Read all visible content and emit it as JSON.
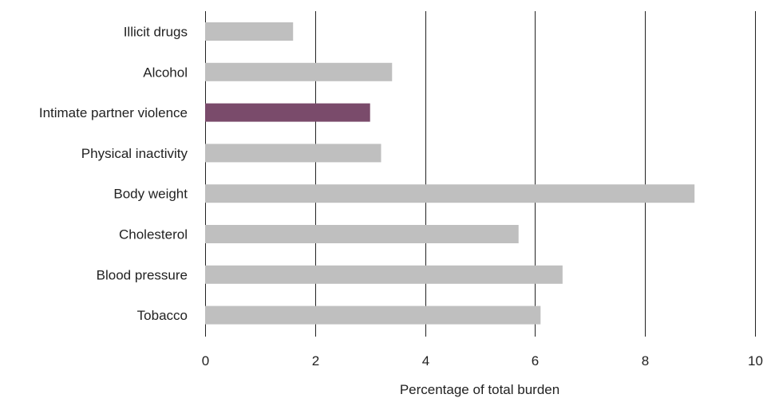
{
  "chart_data": {
    "type": "bar",
    "orientation": "horizontal",
    "categories": [
      "Illicit drugs",
      "Alcohol",
      "Intimate partner violence",
      "Physical inactivity",
      "Body weight",
      "Cholesterol",
      "Blood pressure",
      "Tobacco"
    ],
    "values": [
      1.6,
      3.4,
      3.0,
      3.2,
      8.9,
      5.7,
      6.5,
      6.1
    ],
    "highlight_index": 2,
    "xlabel": "Percentage of total burden",
    "ylabel": "",
    "xlim": [
      0,
      10
    ],
    "xticks": [
      "0",
      "2",
      "4",
      "6",
      "8",
      "10"
    ],
    "grid": "vertical",
    "colors": {
      "bar": "#bfbfbf",
      "highlight": "#7a4b6b",
      "grid": "#222222",
      "text": "#222222"
    }
  }
}
